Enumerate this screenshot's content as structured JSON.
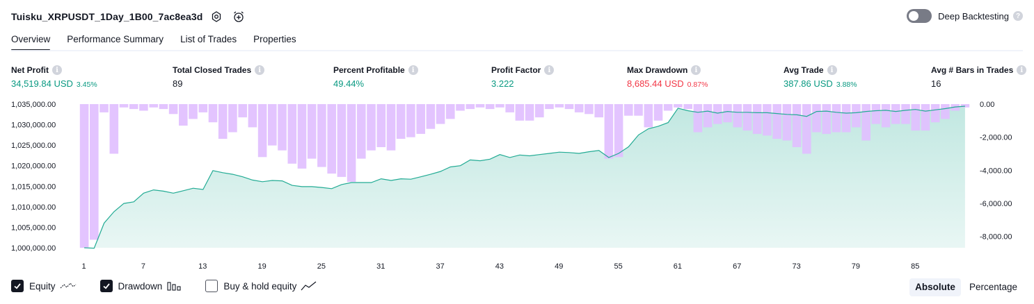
{
  "header": {
    "title": "Tuisku_XRPUSDT_1Day_1B00_7ac8ea3d",
    "settings_icon": "gear-icon",
    "alert_icon": "alarm-clock-plus-icon"
  },
  "deep_backtesting": {
    "label": "Deep Backtesting",
    "enabled": false,
    "help_icon": "question-icon"
  },
  "tabs": [
    {
      "label": "Overview",
      "active": true
    },
    {
      "label": "Performance Summary",
      "active": false
    },
    {
      "label": "List of Trades",
      "active": false
    },
    {
      "label": "Properties",
      "active": false
    }
  ],
  "metrics": [
    {
      "label": "Net Profit",
      "value": "34,519.84 USD",
      "percent": "3.45%",
      "tone": "pos"
    },
    {
      "label": "Total Closed Trades",
      "value": "89",
      "percent": "",
      "tone": "neu"
    },
    {
      "label": "Percent Profitable",
      "value": "49.44%",
      "percent": "",
      "tone": "pos"
    },
    {
      "label": "Profit Factor",
      "value": "3.222",
      "percent": "",
      "tone": "pos"
    },
    {
      "label": "Max Drawdown",
      "value": "8,685.44 USD",
      "percent": "0.87%",
      "tone": "neg"
    },
    {
      "label": "Avg Trade",
      "value": "387.86 USD",
      "percent": "3.88%",
      "tone": "pos"
    },
    {
      "label": "Avg # Bars in Trades",
      "value": "16",
      "percent": "",
      "tone": "neu"
    }
  ],
  "legend": {
    "equity": {
      "label": "Equity",
      "checked": true
    },
    "drawdown": {
      "label": "Drawdown",
      "checked": true
    },
    "buy_hold": {
      "label": "Buy & hold equity",
      "checked": false
    }
  },
  "mode_buttons": [
    {
      "label": "Absolute",
      "active": true
    },
    {
      "label": "Percentage",
      "active": false
    }
  ],
  "colors": {
    "equity_line": "#22ab94",
    "drawdown_bar": "#e1bfff",
    "positive": "#089981",
    "negative": "#f23645"
  },
  "chart_data": {
    "type": "area",
    "x_ticks": [
      "1",
      "7",
      "13",
      "19",
      "25",
      "31",
      "37",
      "43",
      "49",
      "55",
      "61",
      "67",
      "73",
      "79",
      "85"
    ],
    "left_axis": {
      "ticks": [
        "1,035,000.00",
        "1,030,000.00",
        "1,025,000.00",
        "1,020,000.00",
        "1,015,000.00",
        "1,010,000.00",
        "1,005,000.00",
        "1,000,000.00"
      ],
      "ylim": [
        1000000,
        1035000
      ]
    },
    "right_axis": {
      "ticks": [
        "0.00",
        "-2,000.00",
        "-4,000.00",
        "-6,000.00",
        "-8,000.00"
      ],
      "ylim": [
        -8685.44,
        0
      ]
    },
    "series": [
      {
        "name": "Equity",
        "values": [
          1000000,
          999900,
          1006000,
          1008800,
          1010800,
          1011200,
          1013300,
          1014100,
          1013800,
          1013300,
          1013900,
          1014500,
          1014200,
          1018800,
          1018300,
          1017900,
          1017300,
          1016500,
          1016100,
          1016400,
          1016300,
          1015200,
          1014900,
          1014900,
          1014700,
          1014400,
          1015400,
          1015900,
          1015900,
          1015900,
          1016800,
          1016400,
          1016800,
          1016700,
          1017300,
          1017900,
          1018600,
          1019700,
          1020000,
          1021400,
          1021200,
          1021600,
          1022700,
          1022000,
          1022600,
          1022400,
          1022700,
          1023000,
          1023300,
          1023200,
          1023000,
          1023400,
          1023700,
          1022000,
          1023000,
          1024600,
          1027500,
          1029000,
          1029600,
          1030500,
          1034000,
          1033400,
          1033000,
          1033300,
          1032800,
          1033200,
          1033000,
          1033000,
          1032900,
          1032900,
          1032700,
          1032500,
          1032400,
          1032000,
          1033200,
          1033300,
          1033000,
          1032800,
          1032900,
          1033200,
          1033400,
          1033500,
          1033200,
          1033500,
          1033700,
          1033300,
          1033600,
          1033900,
          1034300,
          1034500
        ]
      },
      {
        "name": "Drawdown",
        "values": [
          -8685,
          -8200,
          -500,
          -3000,
          -200,
          -300,
          -400,
          -200,
          -300,
          -600,
          -1300,
          -900,
          -500,
          -1100,
          -2100,
          -1700,
          -800,
          -1400,
          -3200,
          -2500,
          -2800,
          -3600,
          -3900,
          -3300,
          -3800,
          -4200,
          -4400,
          -4700,
          -3300,
          -2800,
          -2600,
          -2800,
          -2100,
          -2000,
          -1800,
          -1500,
          -1200,
          -900,
          -400,
          -300,
          -200,
          -300,
          -200,
          -500,
          -1000,
          -1000,
          -800,
          -300,
          -200,
          -300,
          -500,
          -600,
          -800,
          -3300,
          -3200,
          -700,
          -700,
          -1400,
          -1000,
          -400,
          -200,
          -300,
          -1700,
          -1400,
          -1200,
          -1100,
          -1400,
          -1600,
          -1800,
          -1900,
          -2100,
          -2200,
          -2600,
          -3000,
          -1700,
          -1800,
          -1700,
          -1700,
          -1400,
          -2200,
          -1200,
          -1400,
          -1200,
          -1200,
          -1600,
          -1600,
          -1100,
          -900,
          -400,
          -200
        ]
      }
    ],
    "grid": false,
    "legend": "bottom-left"
  }
}
